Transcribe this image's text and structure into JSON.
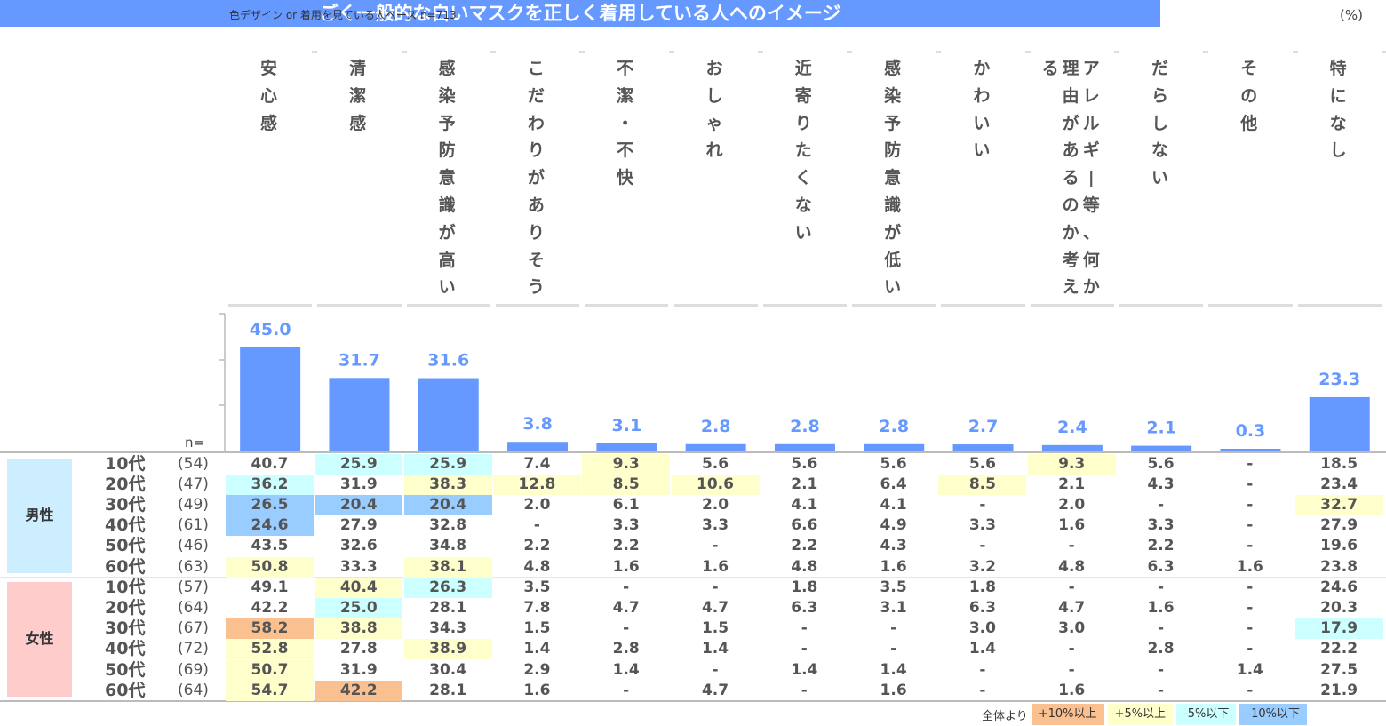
{
  "header": {
    "base_note": "色デザイン or 着用を見ている人ベース n=713",
    "unit": "(%)",
    "title": "ごく一般的な白いマスクを正しく着用している人へのイメージ"
  },
  "colors": {
    "accent": "#6699ff",
    "bar": "#6699ff",
    "hi10": "#fac090",
    "hi5": "#ffffcc",
    "lo5": "#ccffff",
    "lo10": "#99ccff",
    "male_bg": "#cceeff",
    "female_bg": "#ffcccc"
  },
  "n_label": "n=",
  "chart_data": {
    "type": "bar",
    "categories": [
      "安心感",
      "清潔感",
      "感染予防意識が高い",
      "こだわりがありそう",
      "不潔・不快",
      "おしゃれ",
      "近寄りたくない",
      "感染予防意識が低い",
      "かわいい",
      "アレルギー等、何か理由があるのか考える",
      "だらしない",
      "その他",
      "特になし"
    ],
    "values": [
      45.0,
      31.7,
      31.6,
      3.8,
      3.1,
      2.8,
      2.8,
      2.8,
      2.7,
      2.4,
      2.1,
      0.3,
      23.3
    ],
    "value_labels": [
      "45.0",
      "31.7",
      "31.6",
      "3.8",
      "3.1",
      "2.8",
      "2.8",
      "2.8",
      "2.7",
      "2.4",
      "2.1",
      "0.3",
      "23.3"
    ],
    "ylim": [
      0,
      50
    ]
  },
  "column_label_lines": [
    [
      "安心感"
    ],
    [
      "清潔感"
    ],
    [
      "感染予防意識が高い"
    ],
    [
      "こだわりがありそう"
    ],
    [
      "不潔・不快"
    ],
    [
      "おしゃれ"
    ],
    [
      "近寄りたくない"
    ],
    [
      "感染予防意識が低い"
    ],
    [
      "かわいい"
    ],
    [
      "アレルギー等、何か",
      "理由があるのか考え",
      "る"
    ],
    [
      "だらしない"
    ],
    [
      "その他"
    ],
    [
      "特になし"
    ]
  ],
  "table": {
    "groups": [
      {
        "label": "男性",
        "rows": [
          {
            "age": "10代",
            "n": "(54)",
            "values": [
              "40.7",
              "25.9",
              "25.9",
              "7.4",
              "9.3",
              "5.6",
              "5.6",
              "5.6",
              "5.6",
              "9.3",
              "5.6",
              "-",
              "18.5"
            ],
            "marks": [
              "",
              "lo5",
              "lo5",
              "",
              "hi5",
              "",
              "",
              "",
              "",
              "hi5",
              "",
              "",
              ""
            ]
          },
          {
            "age": "20代",
            "n": "(47)",
            "values": [
              "36.2",
              "31.9",
              "38.3",
              "12.8",
              "8.5",
              "10.6",
              "2.1",
              "6.4",
              "8.5",
              "2.1",
              "4.3",
              "-",
              "23.4"
            ],
            "marks": [
              "lo5",
              "",
              "hi5",
              "hi5",
              "hi5",
              "hi5",
              "",
              "",
              "hi5",
              "",
              "",
              "",
              ""
            ]
          },
          {
            "age": "30代",
            "n": "(49)",
            "values": [
              "26.5",
              "20.4",
              "20.4",
              "2.0",
              "6.1",
              "2.0",
              "4.1",
              "4.1",
              "-",
              "2.0",
              "-",
              "-",
              "32.7"
            ],
            "marks": [
              "lo10",
              "lo10",
              "lo10",
              "",
              "",
              "",
              "",
              "",
              "",
              "",
              "",
              "",
              "hi5"
            ]
          },
          {
            "age": "40代",
            "n": "(61)",
            "values": [
              "24.6",
              "27.9",
              "32.8",
              "-",
              "3.3",
              "3.3",
              "6.6",
              "4.9",
              "3.3",
              "1.6",
              "3.3",
              "-",
              "27.9"
            ],
            "marks": [
              "lo10",
              "",
              "",
              "",
              "",
              "",
              "",
              "",
              "",
              "",
              "",
              "",
              ""
            ]
          },
          {
            "age": "50代",
            "n": "(46)",
            "values": [
              "43.5",
              "32.6",
              "34.8",
              "2.2",
              "2.2",
              "-",
              "2.2",
              "4.3",
              "-",
              "-",
              "2.2",
              "-",
              "19.6"
            ],
            "marks": [
              "",
              "",
              "",
              "",
              "",
              "",
              "",
              "",
              "",
              "",
              "",
              "",
              ""
            ]
          },
          {
            "age": "60代",
            "n": "(63)",
            "values": [
              "50.8",
              "33.3",
              "38.1",
              "4.8",
              "1.6",
              "1.6",
              "4.8",
              "1.6",
              "3.2",
              "4.8",
              "6.3",
              "1.6",
              "23.8"
            ],
            "marks": [
              "hi5",
              "",
              "hi5",
              "",
              "",
              "",
              "",
              "",
              "",
              "",
              "",
              "",
              ""
            ]
          }
        ]
      },
      {
        "label": "女性",
        "rows": [
          {
            "age": "10代",
            "n": "(57)",
            "values": [
              "49.1",
              "40.4",
              "26.3",
              "3.5",
              "-",
              "-",
              "1.8",
              "3.5",
              "1.8",
              "-",
              "-",
              "-",
              "24.6"
            ],
            "marks": [
              "",
              "hi5",
              "lo5",
              "",
              "",
              "",
              "",
              "",
              "",
              "",
              "",
              "",
              ""
            ]
          },
          {
            "age": "20代",
            "n": "(64)",
            "values": [
              "42.2",
              "25.0",
              "28.1",
              "7.8",
              "4.7",
              "4.7",
              "6.3",
              "3.1",
              "6.3",
              "4.7",
              "1.6",
              "-",
              "20.3"
            ],
            "marks": [
              "",
              "lo5",
              "",
              "",
              "",
              "",
              "",
              "",
              "",
              "",
              "",
              "",
              ""
            ]
          },
          {
            "age": "30代",
            "n": "(67)",
            "values": [
              "58.2",
              "38.8",
              "34.3",
              "1.5",
              "-",
              "1.5",
              "-",
              "-",
              "3.0",
              "3.0",
              "-",
              "-",
              "17.9"
            ],
            "marks": [
              "hi10",
              "hi5",
              "",
              "",
              "",
              "",
              "",
              "",
              "",
              "",
              "",
              "",
              "lo5"
            ]
          },
          {
            "age": "40代",
            "n": "(72)",
            "values": [
              "52.8",
              "27.8",
              "38.9",
              "1.4",
              "2.8",
              "1.4",
              "-",
              "-",
              "1.4",
              "-",
              "2.8",
              "-",
              "22.2"
            ],
            "marks": [
              "hi5",
              "",
              "hi5",
              "",
              "",
              "",
              "",
              "",
              "",
              "",
              "",
              "",
              ""
            ]
          },
          {
            "age": "50代",
            "n": "(69)",
            "values": [
              "50.7",
              "31.9",
              "30.4",
              "2.9",
              "1.4",
              "-",
              "1.4",
              "1.4",
              "-",
              "-",
              "-",
              "1.4",
              "27.5"
            ],
            "marks": [
              "hi5",
              "",
              "",
              "",
              "",
              "",
              "",
              "",
              "",
              "",
              "",
              "",
              ""
            ]
          },
          {
            "age": "60代",
            "n": "(64)",
            "values": [
              "54.7",
              "42.2",
              "28.1",
              "1.6",
              "-",
              "4.7",
              "-",
              "1.6",
              "-",
              "1.6",
              "-",
              "-",
              "21.9"
            ],
            "marks": [
              "hi5",
              "hi10",
              "",
              "",
              "",
              "",
              "",
              "",
              "",
              "",
              "",
              "",
              ""
            ]
          }
        ]
      }
    ]
  },
  "legend": {
    "prefix": "全体より",
    "items": [
      {
        "label": "+10%以上",
        "key": "hi10"
      },
      {
        "label": "+5%以上",
        "key": "hi5"
      },
      {
        "label": "-5%以下",
        "key": "lo5"
      },
      {
        "label": "-10%以下",
        "key": "lo10"
      }
    ]
  }
}
